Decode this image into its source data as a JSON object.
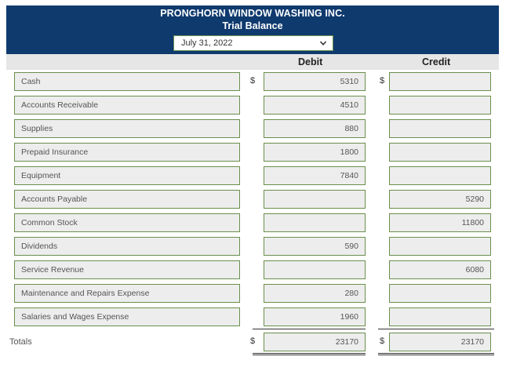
{
  "header": {
    "company": "PRONGHORN WINDOW WASHING INC.",
    "report": "Trial Balance",
    "date_selected": "July 31, 2022"
  },
  "columns": {
    "debit": "Debit",
    "credit": "Credit"
  },
  "currency_symbol": "$",
  "rows": [
    {
      "account": "Cash",
      "debit": "5310",
      "credit": ""
    },
    {
      "account": "Accounts Receivable",
      "debit": "4510",
      "credit": ""
    },
    {
      "account": "Supplies",
      "debit": "880",
      "credit": ""
    },
    {
      "account": "Prepaid Insurance",
      "debit": "1800",
      "credit": ""
    },
    {
      "account": "Equipment",
      "debit": "7840",
      "credit": ""
    },
    {
      "account": "Accounts Payable",
      "debit": "",
      "credit": "5290"
    },
    {
      "account": "Common Stock",
      "debit": "",
      "credit": "11800"
    },
    {
      "account": "Dividends",
      "debit": "590",
      "credit": ""
    },
    {
      "account": "Service Revenue",
      "debit": "",
      "credit": "6080"
    },
    {
      "account": "Maintenance and Repairs Expense",
      "debit": "280",
      "credit": ""
    },
    {
      "account": "Salaries and Wages Expense",
      "debit": "1960",
      "credit": ""
    }
  ],
  "totals": {
    "label": "Totals",
    "debit": "23170",
    "credit": "23170"
  },
  "colors": {
    "header_bg": "#0f3a6e",
    "field_border": "#6a8f4c",
    "field_bg": "#ededed"
  },
  "icons": {
    "dropdown": "chevron-down-icon"
  }
}
